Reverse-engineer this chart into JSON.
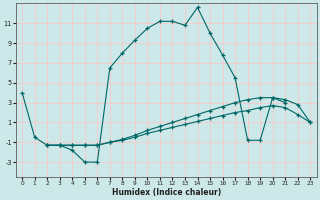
{
  "xlabel": "Humidex (Indice chaleur)",
  "bg_color": "#cce8e8",
  "grid_color": "#f2cece",
  "line_color": "#006666",
  "xlim": [
    -0.5,
    23.5
  ],
  "ylim": [
    -4.5,
    13.0
  ],
  "yticks": [
    -3,
    -1,
    1,
    3,
    5,
    7,
    9,
    11
  ],
  "xticks": [
    0,
    1,
    2,
    3,
    4,
    5,
    6,
    7,
    8,
    9,
    10,
    11,
    12,
    13,
    14,
    15,
    16,
    17,
    18,
    19,
    20,
    21,
    22,
    23
  ],
  "line1_x": [
    0,
    1,
    2,
    3,
    4,
    5,
    6,
    7,
    8,
    9,
    10,
    11,
    12,
    13,
    14,
    15,
    16,
    17,
    18,
    19,
    20,
    21
  ],
  "line1_y": [
    4.0,
    -0.5,
    -1.3,
    -1.3,
    -1.8,
    -3.0,
    -3.0,
    6.5,
    8.0,
    9.3,
    10.5,
    11.2,
    11.2,
    10.8,
    12.6,
    10.0,
    7.8,
    5.5,
    -0.8,
    -0.8,
    3.5,
    3.0
  ],
  "line2_x": [
    2,
    3,
    4,
    5,
    6,
    7,
    8,
    9,
    10,
    11,
    12,
    13,
    14,
    15,
    16,
    17,
    18,
    19,
    20,
    21,
    22,
    23
  ],
  "line2_y": [
    -1.3,
    -1.3,
    -1.3,
    -1.3,
    -1.3,
    -1.0,
    -0.7,
    -0.3,
    0.2,
    0.6,
    1.0,
    1.4,
    1.8,
    2.2,
    2.6,
    3.0,
    3.3,
    3.5,
    3.5,
    3.3,
    2.8,
    1.0
  ],
  "line3_x": [
    2,
    3,
    4,
    5,
    6,
    7,
    8,
    9,
    10,
    11,
    12,
    13,
    14,
    15,
    16,
    17,
    18,
    19,
    20,
    21,
    22,
    23
  ],
  "line3_y": [
    -1.3,
    -1.3,
    -1.3,
    -1.3,
    -1.3,
    -1.0,
    -0.8,
    -0.5,
    -0.1,
    0.2,
    0.5,
    0.8,
    1.1,
    1.4,
    1.7,
    2.0,
    2.2,
    2.5,
    2.7,
    2.5,
    1.8,
    1.0
  ]
}
